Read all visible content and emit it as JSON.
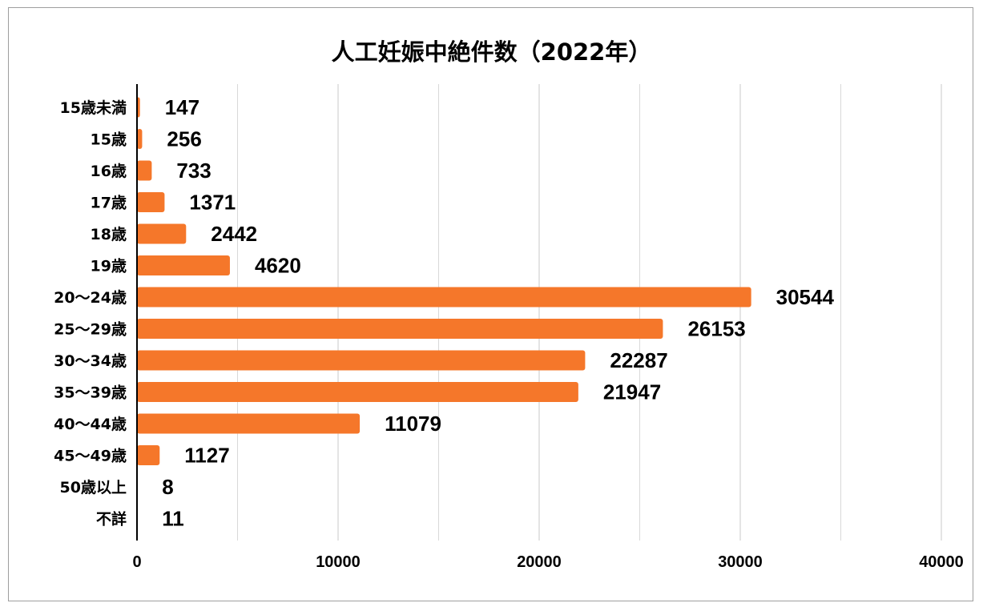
{
  "chart_data": {
    "type": "bar",
    "orientation": "horizontal",
    "title": "人工妊娠中絶件数（2022年）",
    "categories": [
      "15歳未満",
      "15歳",
      "16歳",
      "17歳",
      "18歳",
      "19歳",
      "20〜24歳",
      "25〜29歳",
      "30〜34歳",
      "35〜39歳",
      "40〜44歳",
      "45〜49歳",
      "50歳以上",
      "不詳"
    ],
    "values": [
      147,
      256,
      733,
      1371,
      2442,
      4620,
      30544,
      26153,
      22287,
      21947,
      11079,
      1127,
      8,
      11
    ],
    "xlim": [
      0,
      40000
    ],
    "x_ticks": [
      0,
      10000,
      20000,
      30000,
      40000
    ],
    "xlabel": "",
    "ylabel": "",
    "grid": true,
    "legend": "none",
    "bar_color": "#f5772a",
    "data_labels": true
  }
}
